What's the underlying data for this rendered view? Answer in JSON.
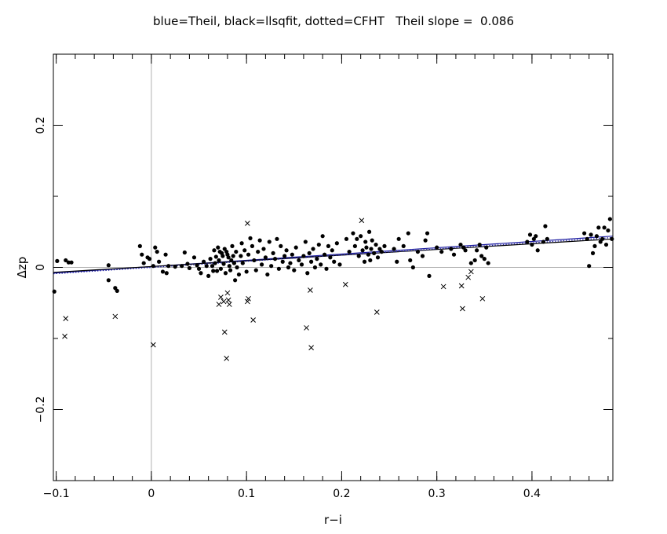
{
  "chart_data": {
    "type": "scatter",
    "title": "blue=Theil, black=llsqfit, dotted=CFHT   Theil slope =  0.086",
    "xlabel": "r−i",
    "ylabel": "Δzp",
    "xlim": [
      -0.103,
      0.485
    ],
    "ylim": [
      -0.3,
      0.3
    ],
    "x_ticks": [
      -0.1,
      0,
      0.1,
      0.2,
      0.3,
      0.4
    ],
    "x_tick_labels": [
      "−0.1",
      "0",
      "0.1",
      "0.2",
      "0.3",
      "0.4"
    ],
    "y_ticks": [
      -0.2,
      0,
      0.2
    ],
    "y_tick_labels": [
      "−0.2",
      "0",
      "0.2"
    ],
    "grid": false,
    "reference_lines": [
      {
        "axis": "x",
        "value": 0
      },
      {
        "axis": "y",
        "value": 0
      }
    ],
    "colors": {
      "theil": "#1a1aa0",
      "llsqfit": "#000000",
      "cfht": "#1a1aa0",
      "reference": "#b0b0b0"
    },
    "fit_lines": [
      {
        "name": "Theil",
        "x": [
          -0.103,
          0.485
        ],
        "y": [
          -0.008,
          0.044
        ],
        "style": "solid",
        "color": "#1a1aa0"
      },
      {
        "name": "llsqfit",
        "x": [
          -0.103,
          0.485
        ],
        "y": [
          -0.007,
          0.04
        ],
        "style": "solid",
        "color": "#000000"
      },
      {
        "name": "CFHT",
        "x": [
          -0.103,
          0.485
        ],
        "y": [
          -0.009,
          0.042
        ],
        "style": "dotted",
        "color": "#1a1aa0"
      }
    ],
    "series": [
      {
        "name": "",
        "marker": "filled-circle",
        "points": [
          [
            -0.102,
            -0.034
          ],
          [
            -0.099,
            0.009
          ],
          [
            -0.09,
            0.01
          ],
          [
            -0.087,
            0.007
          ],
          [
            -0.084,
            0.007
          ],
          [
            -0.045,
            -0.018
          ],
          [
            -0.045,
            0.003
          ],
          [
            -0.038,
            -0.029
          ],
          [
            -0.036,
            -0.033
          ],
          [
            -0.012,
            0.03
          ],
          [
            -0.01,
            0.018
          ],
          [
            -0.008,
            0.006
          ],
          [
            -0.004,
            0.014
          ],
          [
            -0.002,
            0.012
          ],
          [
            0.002,
            0.002
          ],
          [
            0.004,
            0.028
          ],
          [
            0.006,
            0.022
          ],
          [
            0.008,
            0.008
          ],
          [
            0.012,
            -0.006
          ],
          [
            0.015,
            0.018
          ],
          [
            0.016,
            -0.008
          ],
          [
            0.018,
            0.002
          ],
          [
            0.025,
            0.001
          ],
          [
            0.032,
            0.002
          ],
          [
            0.035,
            0.021
          ],
          [
            0.038,
            0.005
          ],
          [
            0.04,
            -0.001
          ],
          [
            0.045,
            0.014
          ],
          [
            0.048,
            0.003
          ],
          [
            0.05,
            -0.002
          ],
          [
            0.052,
            -0.008
          ],
          [
            0.055,
            0.008
          ],
          [
            0.058,
            0.002
          ],
          [
            0.06,
            -0.012
          ],
          [
            0.062,
            0.012
          ],
          [
            0.064,
            0.002
          ],
          [
            0.065,
            -0.005
          ],
          [
            0.066,
            0.024
          ],
          [
            0.067,
            0.006
          ],
          [
            0.068,
            0.015
          ],
          [
            0.069,
            -0.005
          ],
          [
            0.07,
            0.028
          ],
          [
            0.071,
            0.01
          ],
          [
            0.072,
            0.022
          ],
          [
            0.073,
            -0.002
          ],
          [
            0.074,
            0.02
          ],
          [
            0.075,
            0.016
          ],
          [
            0.076,
            0.005
          ],
          [
            0.077,
            0.026
          ],
          [
            0.078,
            -0.008
          ],
          [
            0.079,
            0.022
          ],
          [
            0.08,
            0.018
          ],
          [
            0.081,
            0.014
          ],
          [
            0.082,
            0.002
          ],
          [
            0.083,
            -0.004
          ],
          [
            0.084,
            0.01
          ],
          [
            0.085,
            0.03
          ],
          [
            0.086,
            0.016
          ],
          [
            0.087,
            0.006
          ],
          [
            0.088,
            -0.018
          ],
          [
            0.089,
            0.022
          ],
          [
            0.09,
            0.0
          ],
          [
            0.092,
            -0.01
          ],
          [
            0.094,
            0.016
          ],
          [
            0.095,
            0.034
          ],
          [
            0.096,
            0.006
          ],
          [
            0.098,
            0.024
          ],
          [
            0.1,
            -0.006
          ],
          [
            0.102,
            0.018
          ],
          [
            0.104,
            0.041
          ],
          [
            0.106,
            0.03
          ],
          [
            0.108,
            0.01
          ],
          [
            0.11,
            -0.004
          ],
          [
            0.112,
            0.022
          ],
          [
            0.114,
            0.038
          ],
          [
            0.116,
            0.004
          ],
          [
            0.118,
            0.026
          ],
          [
            0.12,
            0.014
          ],
          [
            0.122,
            -0.01
          ],
          [
            0.124,
            0.036
          ],
          [
            0.126,
            0.002
          ],
          [
            0.128,
            0.02
          ],
          [
            0.13,
            0.012
          ],
          [
            0.132,
            0.04
          ],
          [
            0.134,
            -0.002
          ],
          [
            0.136,
            0.03
          ],
          [
            0.138,
            0.008
          ],
          [
            0.14,
            0.016
          ],
          [
            0.142,
            0.024
          ],
          [
            0.144,
            0.0
          ],
          [
            0.146,
            0.006
          ],
          [
            0.148,
            0.018
          ],
          [
            0.15,
            -0.004
          ],
          [
            0.152,
            0.028
          ],
          [
            0.155,
            0.01
          ],
          [
            0.158,
            0.004
          ],
          [
            0.16,
            0.016
          ],
          [
            0.162,
            0.036
          ],
          [
            0.164,
            -0.008
          ],
          [
            0.166,
            0.02
          ],
          [
            0.168,
            0.008
          ],
          [
            0.17,
            0.026
          ],
          [
            0.172,
            0.0
          ],
          [
            0.174,
            0.012
          ],
          [
            0.176,
            0.032
          ],
          [
            0.178,
            0.004
          ],
          [
            0.18,
            0.044
          ],
          [
            0.182,
            0.018
          ],
          [
            0.184,
            -0.002
          ],
          [
            0.186,
            0.03
          ],
          [
            0.188,
            0.014
          ],
          [
            0.19,
            0.024
          ],
          [
            0.192,
            0.008
          ],
          [
            0.195,
            0.034
          ],
          [
            0.198,
            0.004
          ],
          [
            0.205,
            0.04
          ],
          [
            0.208,
            0.022
          ],
          [
            0.212,
            0.048
          ],
          [
            0.214,
            0.03
          ],
          [
            0.216,
            0.04
          ],
          [
            0.218,
            0.016
          ],
          [
            0.22,
            0.044
          ],
          [
            0.222,
            0.024
          ],
          [
            0.224,
            0.008
          ],
          [
            0.225,
            0.036
          ],
          [
            0.226,
            0.028
          ],
          [
            0.228,
            0.018
          ],
          [
            0.229,
            0.05
          ],
          [
            0.23,
            0.01
          ],
          [
            0.231,
            0.026
          ],
          [
            0.232,
            0.038
          ],
          [
            0.234,
            0.02
          ],
          [
            0.236,
            0.032
          ],
          [
            0.238,
            0.014
          ],
          [
            0.24,
            0.026
          ],
          [
            0.242,
            0.022
          ],
          [
            0.245,
            0.03
          ],
          [
            0.255,
            0.026
          ],
          [
            0.258,
            0.008
          ],
          [
            0.26,
            0.04
          ],
          [
            0.265,
            0.03
          ],
          [
            0.27,
            0.048
          ],
          [
            0.272,
            0.01
          ],
          [
            0.275,
            0.0
          ],
          [
            0.28,
            0.022
          ],
          [
            0.285,
            0.016
          ],
          [
            0.288,
            0.038
          ],
          [
            0.29,
            0.048
          ],
          [
            0.292,
            -0.012
          ],
          [
            0.3,
            0.028
          ],
          [
            0.305,
            0.022
          ],
          [
            0.315,
            0.026
          ],
          [
            0.318,
            0.018
          ],
          [
            0.325,
            0.032
          ],
          [
            0.328,
            0.028
          ],
          [
            0.33,
            0.024
          ],
          [
            0.336,
            0.006
          ],
          [
            0.34,
            0.01
          ],
          [
            0.342,
            0.024
          ],
          [
            0.345,
            0.032
          ],
          [
            0.347,
            0.016
          ],
          [
            0.35,
            0.012
          ],
          [
            0.352,
            0.028
          ],
          [
            0.354,
            0.006
          ],
          [
            0.395,
            0.036
          ],
          [
            0.398,
            0.046
          ],
          [
            0.4,
            0.032
          ],
          [
            0.402,
            0.04
          ],
          [
            0.404,
            0.044
          ],
          [
            0.406,
            0.024
          ],
          [
            0.412,
            0.036
          ],
          [
            0.414,
            0.058
          ],
          [
            0.416,
            0.04
          ],
          [
            0.455,
            0.048
          ],
          [
            0.458,
            0.04
          ],
          [
            0.46,
            0.002
          ],
          [
            0.462,
            0.046
          ],
          [
            0.464,
            0.02
          ],
          [
            0.466,
            0.03
          ],
          [
            0.468,
            0.044
          ],
          [
            0.47,
            0.056
          ],
          [
            0.472,
            0.036
          ],
          [
            0.474,
            0.04
          ],
          [
            0.476,
            0.056
          ],
          [
            0.478,
            0.032
          ],
          [
            0.48,
            0.052
          ],
          [
            0.482,
            0.068
          ],
          [
            0.484,
            0.04
          ]
        ]
      },
      {
        "name": "",
        "marker": "x",
        "points": [
          [
            -0.09,
            -0.072
          ],
          [
            -0.091,
            -0.097
          ],
          [
            -0.038,
            -0.069
          ],
          [
            0.002,
            -0.109
          ],
          [
            0.071,
            -0.052
          ],
          [
            0.073,
            -0.042
          ],
          [
            0.076,
            -0.048
          ],
          [
            0.077,
            -0.091
          ],
          [
            0.079,
            -0.128
          ],
          [
            0.08,
            -0.036
          ],
          [
            0.081,
            -0.046
          ],
          [
            0.082,
            -0.052
          ],
          [
            0.101,
            0.062
          ],
          [
            0.101,
            -0.048
          ],
          [
            0.102,
            -0.044
          ],
          [
            0.107,
            -0.074
          ],
          [
            0.163,
            -0.085
          ],
          [
            0.167,
            -0.032
          ],
          [
            0.168,
            -0.113
          ],
          [
            0.204,
            -0.024
          ],
          [
            0.221,
            0.066
          ],
          [
            0.237,
            -0.063
          ],
          [
            0.307,
            -0.027
          ],
          [
            0.326,
            -0.026
          ],
          [
            0.327,
            -0.058
          ],
          [
            0.333,
            -0.014
          ],
          [
            0.336,
            -0.006
          ],
          [
            0.348,
            -0.044
          ]
        ]
      }
    ]
  }
}
